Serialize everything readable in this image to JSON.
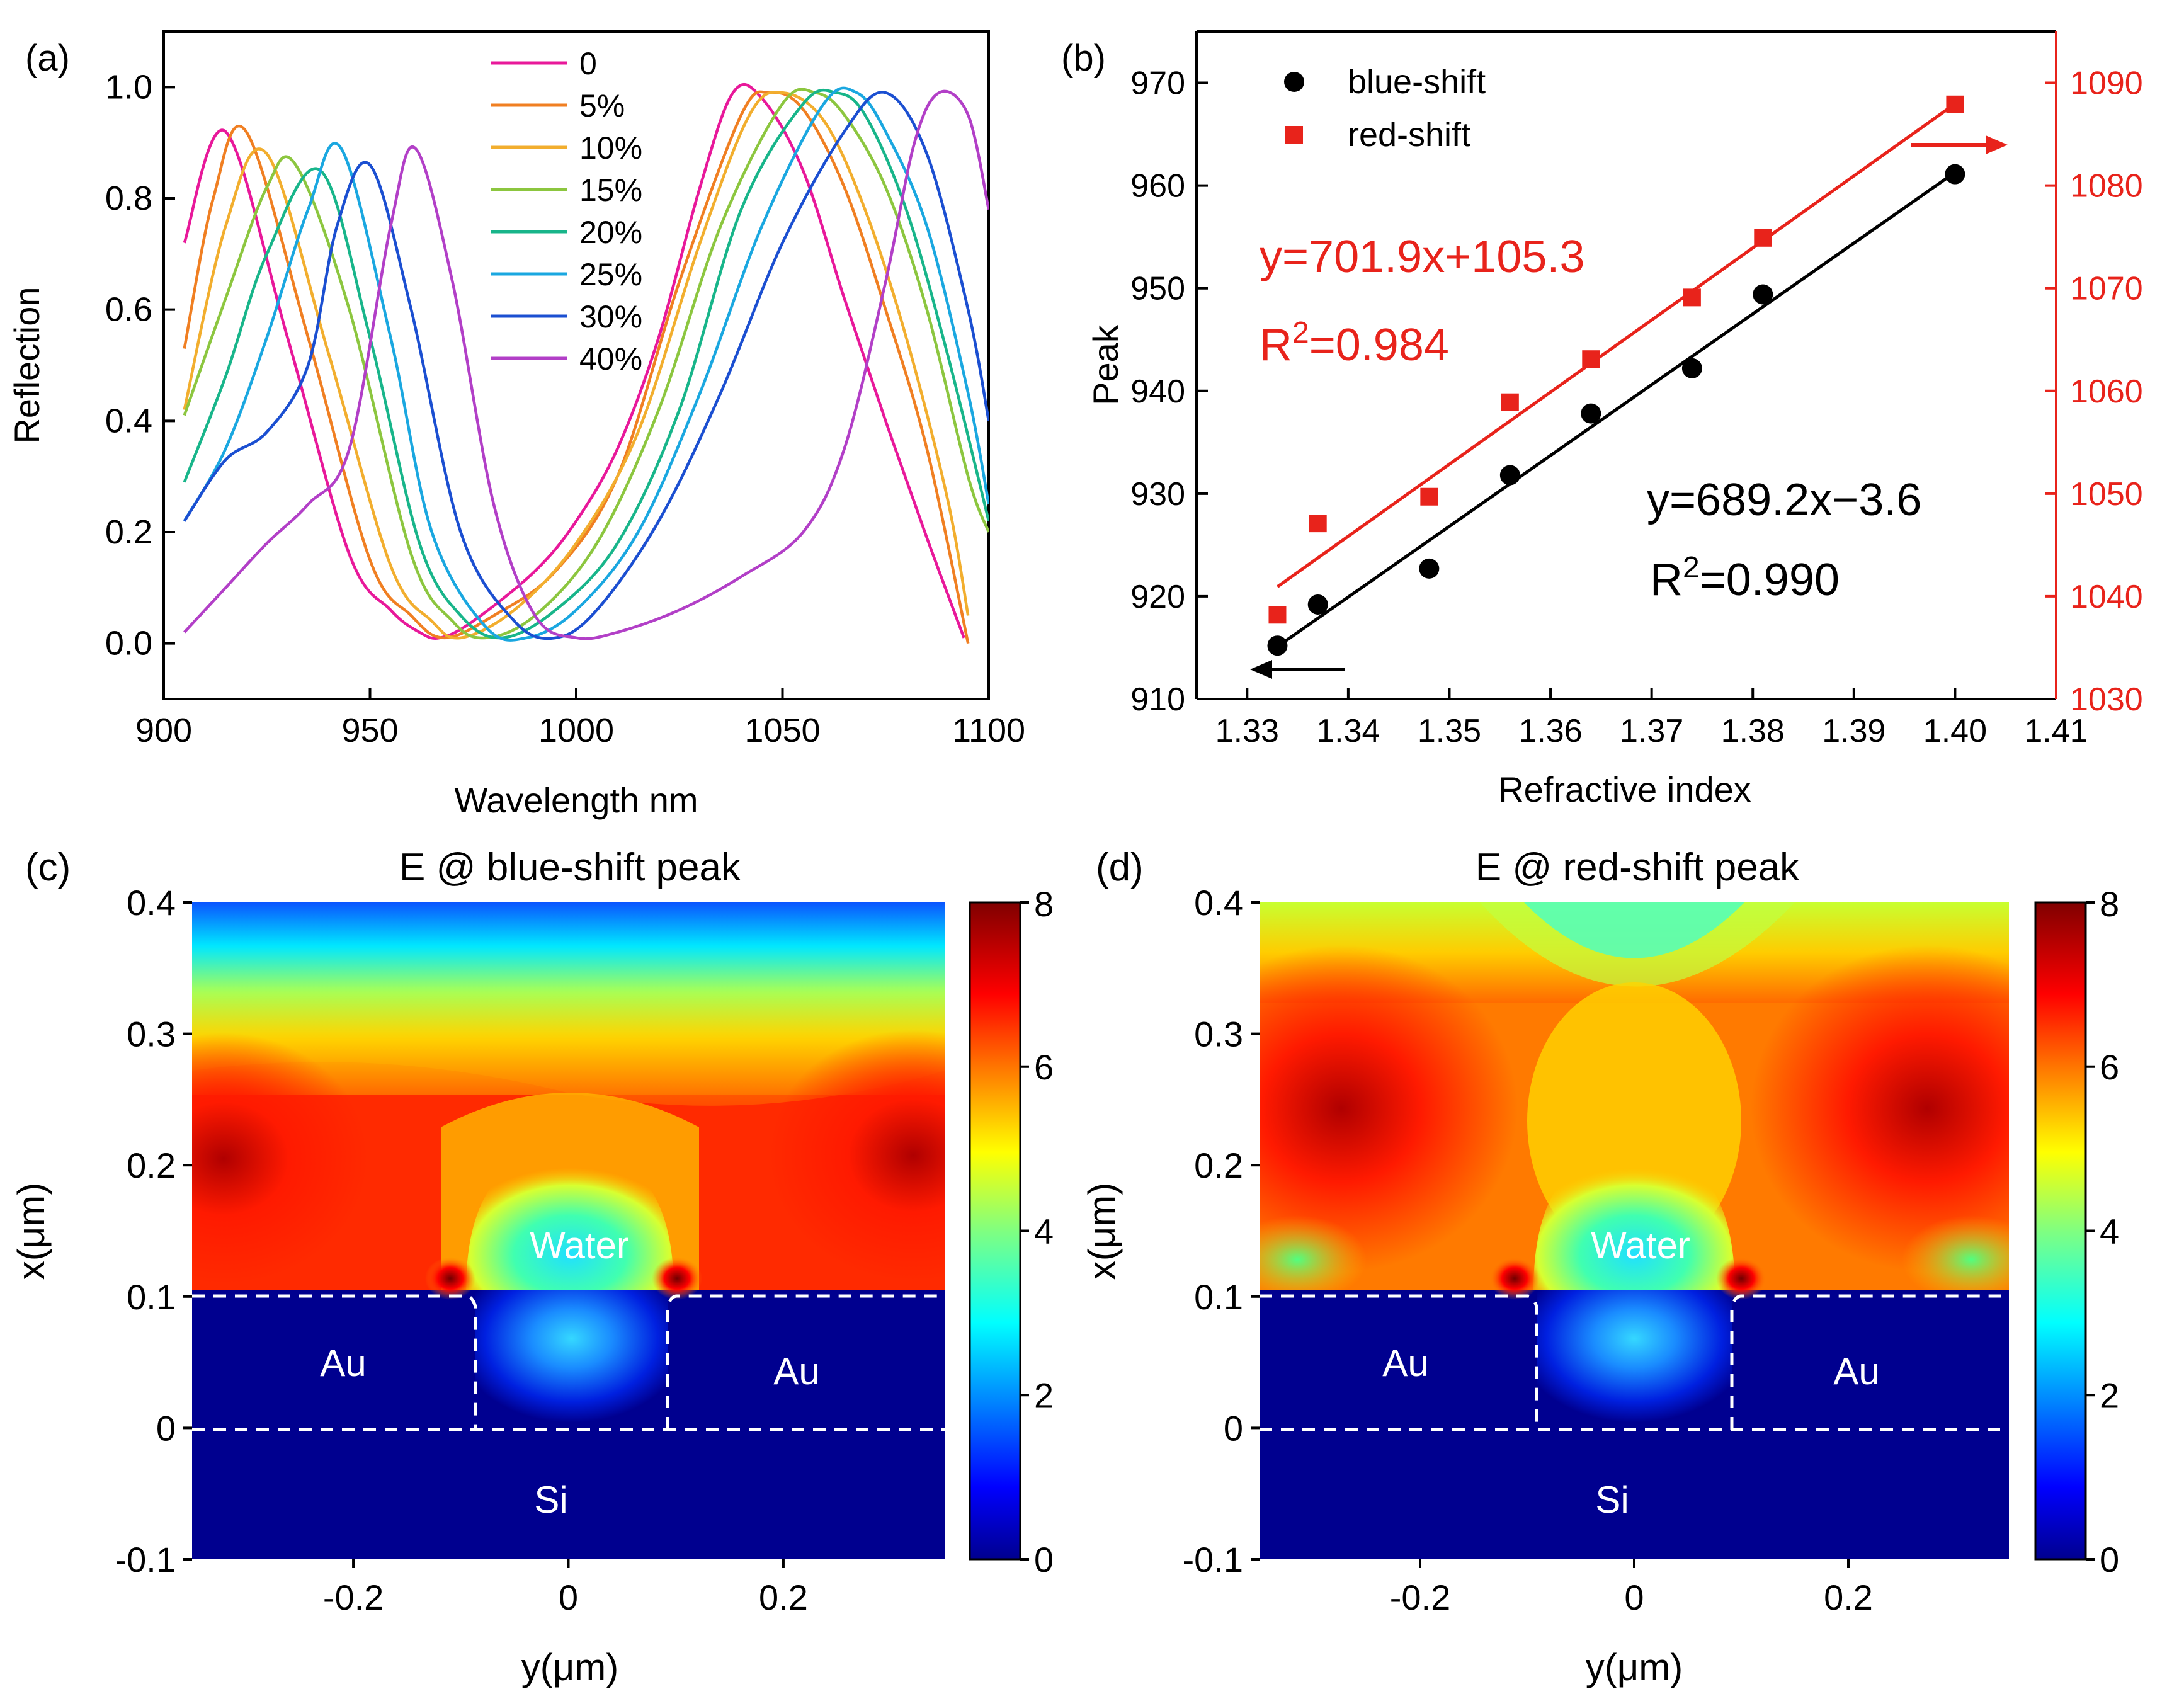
{
  "chart_data": [
    {
      "panel": "(a)",
      "type": "line",
      "xlabel": "Wavelength nm",
      "ylabel": "Reflection",
      "xlim": [
        900,
        1100
      ],
      "ylim": [
        -0.1,
        1.1
      ],
      "xticks": [
        "900",
        "950",
        "1000",
        "1050",
        "1100"
      ],
      "yticks": [
        "0.0",
        "0.2",
        "0.4",
        "0.6",
        "0.8",
        "1.0"
      ],
      "legend_position": "top-center",
      "series": [
        {
          "name": "0",
          "color": "#e8189a",
          "x": [
            905,
            915,
            930,
            945,
            955,
            962,
            967,
            975,
            990,
            1000,
            1010,
            1020,
            1030,
            1038,
            1045,
            1055,
            1065,
            1075,
            1085,
            1094
          ],
          "y": [
            0.72,
            0.92,
            0.55,
            0.16,
            0.06,
            0.02,
            0.01,
            0.04,
            0.13,
            0.22,
            0.35,
            0.55,
            0.82,
            0.99,
            0.98,
            0.85,
            0.62,
            0.4,
            0.19,
            0.01
          ]
        },
        {
          "name": "5%",
          "color": "#f07f22",
          "x": [
            905,
            912,
            920,
            935,
            950,
            960,
            968,
            980,
            995,
            1010,
            1025,
            1040,
            1047,
            1055,
            1065,
            1075,
            1085,
            1095
          ],
          "y": [
            0.53,
            0.8,
            0.92,
            0.55,
            0.15,
            0.05,
            0.01,
            0.05,
            0.13,
            0.3,
            0.65,
            0.95,
            0.99,
            0.96,
            0.82,
            0.6,
            0.35,
            0.0
          ]
        },
        {
          "name": "10%",
          "color": "#f2ae2e",
          "x": [
            905,
            915,
            925,
            940,
            955,
            965,
            972,
            985,
            1000,
            1015,
            1030,
            1042,
            1050,
            1060,
            1070,
            1080,
            1090,
            1095
          ],
          "y": [
            0.42,
            0.75,
            0.88,
            0.52,
            0.14,
            0.04,
            0.01,
            0.06,
            0.18,
            0.38,
            0.72,
            0.95,
            0.99,
            0.94,
            0.78,
            0.55,
            0.26,
            0.05
          ]
        },
        {
          "name": "15%",
          "color": "#8cc63f",
          "x": [
            905,
            915,
            925,
            932,
            945,
            960,
            970,
            978,
            990,
            1005,
            1020,
            1035,
            1050,
            1058,
            1065,
            1075,
            1085,
            1095,
            1100
          ],
          "y": [
            0.41,
            0.62,
            0.82,
            0.86,
            0.6,
            0.16,
            0.04,
            0.01,
            0.05,
            0.18,
            0.42,
            0.75,
            0.97,
            0.99,
            0.95,
            0.82,
            0.6,
            0.3,
            0.2
          ]
        },
        {
          "name": "20%",
          "color": "#18b58a",
          "x": [
            905,
            915,
            925,
            938,
            950,
            962,
            972,
            982,
            995,
            1010,
            1025,
            1040,
            1055,
            1063,
            1070,
            1080,
            1090,
            1100
          ],
          "y": [
            0.29,
            0.48,
            0.7,
            0.85,
            0.55,
            0.18,
            0.05,
            0.01,
            0.06,
            0.18,
            0.42,
            0.78,
            0.97,
            0.99,
            0.95,
            0.78,
            0.52,
            0.22
          ]
        },
        {
          "name": "25%",
          "color": "#1aa7e0",
          "x": [
            905,
            915,
            925,
            935,
            943,
            955,
            965,
            978,
            988,
            1000,
            1015,
            1030,
            1045,
            1060,
            1068,
            1075,
            1085,
            1095,
            1100
          ],
          "y": [
            0.22,
            0.35,
            0.55,
            0.78,
            0.89,
            0.55,
            0.2,
            0.03,
            0.01,
            0.06,
            0.2,
            0.45,
            0.75,
            0.97,
            0.99,
            0.92,
            0.75,
            0.45,
            0.25
          ]
        },
        {
          "name": "30%",
          "color": "#1b4fd1",
          "x": [
            905,
            915,
            925,
            935,
            942,
            950,
            960,
            972,
            985,
            995,
            1005,
            1020,
            1035,
            1050,
            1065,
            1075,
            1085,
            1095,
            1100
          ],
          "y": [
            0.22,
            0.33,
            0.38,
            0.5,
            0.75,
            0.86,
            0.6,
            0.2,
            0.04,
            0.01,
            0.06,
            0.22,
            0.45,
            0.72,
            0.92,
            0.99,
            0.88,
            0.6,
            0.4
          ]
        },
        {
          "name": "40%",
          "color": "#b23fc7",
          "x": [
            905,
            915,
            925,
            935,
            945,
            955,
            961,
            970,
            980,
            990,
            1000,
            1010,
            1025,
            1040,
            1055,
            1065,
            1075,
            1082,
            1088,
            1095,
            1100
          ],
          "y": [
            0.02,
            0.1,
            0.18,
            0.25,
            0.35,
            0.75,
            0.89,
            0.65,
            0.25,
            0.05,
            0.01,
            0.02,
            0.06,
            0.12,
            0.2,
            0.35,
            0.65,
            0.9,
            0.99,
            0.95,
            0.78
          ]
        }
      ]
    },
    {
      "panel": "(b)",
      "type": "scatter",
      "xlabel": "Refractive index",
      "ylabel": "Peak",
      "xlim": [
        1.325,
        1.41
      ],
      "ylim_left": [
        910,
        975
      ],
      "ylim_right": [
        1030,
        1095
      ],
      "xticks": [
        "1.33",
        "1.34",
        "1.35",
        "1.36",
        "1.37",
        "1.38",
        "1.39",
        "1.40",
        "1.41"
      ],
      "yticks_left": [
        "910",
        "920",
        "930",
        "940",
        "950",
        "960",
        "970"
      ],
      "yticks_right": [
        "1030",
        "1040",
        "1050",
        "1060",
        "1070",
        "1080",
        "1090"
      ],
      "legend_position": "top-left",
      "series": [
        {
          "name": "blue-shift",
          "axis": "left",
          "marker": "circle",
          "color": "#000000",
          "x": [
            1.333,
            1.337,
            1.348,
            1.356,
            1.364,
            1.374,
            1.381,
            1.4
          ],
          "y": [
            915.2,
            919.2,
            922.7,
            931.8,
            937.8,
            942.2,
            949.4,
            961.1
          ]
        },
        {
          "name": "red-shift",
          "axis": "right",
          "marker": "square",
          "color": "#e8231b",
          "x": [
            1.333,
            1.337,
            1.348,
            1.356,
            1.364,
            1.374,
            1.381,
            1.4
          ],
          "y": [
            1038.2,
            1047.1,
            1049.7,
            1058.9,
            1063.1,
            1069.1,
            1074.9,
            1087.9
          ]
        }
      ],
      "fits": [
        {
          "axis": "left",
          "slope": 689.2,
          "intercept": -3.6,
          "x_range": [
            1.333,
            1.4
          ],
          "color": "#000000"
        },
        {
          "axis": "right",
          "slope": 701.9,
          "intercept": 105.3,
          "x_range": [
            1.333,
            1.4
          ],
          "color": "#e8231b"
        }
      ],
      "annotations": {
        "black_equation": "y=689.2x−3.6",
        "black_r2_base": "R",
        "black_r2_exp": "2",
        "black_r2_val": "=0.990",
        "red_equation": "y=701.9x+105.3",
        "red_r2_base": "R",
        "red_r2_exp": "2",
        "red_r2_val": "=0.984"
      }
    },
    {
      "panel": "(c)",
      "type": "heatmap",
      "title": "E @ blue-shift peak",
      "xlabel": "y(μm)",
      "ylabel": "x(μm)",
      "xlim": [
        -0.35,
        0.35
      ],
      "ylim": [
        -0.1,
        0.4
      ],
      "xticks": [
        "-0.2",
        "0",
        "0.2"
      ],
      "yticks": [
        "-0.1",
        "0",
        "0.1",
        "0.2",
        "0.3",
        "0.4"
      ],
      "colorbar_range": [
        0,
        8
      ],
      "colorbar_ticks": [
        "0",
        "2",
        "4",
        "6",
        "8"
      ],
      "region_labels": [
        "Water",
        "Au",
        "Au",
        "Si"
      ]
    },
    {
      "panel": "(d)",
      "type": "heatmap",
      "title": "E @ red-shift peak",
      "xlabel": "y(μm)",
      "ylabel": "x(μm)",
      "xlim": [
        -0.35,
        0.35
      ],
      "ylim": [
        -0.1,
        0.4
      ],
      "xticks": [
        "-0.2",
        "0",
        "0.2"
      ],
      "yticks": [
        "-0.1",
        "0",
        "0.1",
        "0.2",
        "0.3",
        "0.4"
      ],
      "colorbar_range": [
        0,
        8
      ],
      "colorbar_ticks": [
        "0",
        "2",
        "4",
        "6",
        "8"
      ],
      "region_labels": [
        "Water",
        "Au",
        "Au",
        "Si"
      ]
    }
  ]
}
